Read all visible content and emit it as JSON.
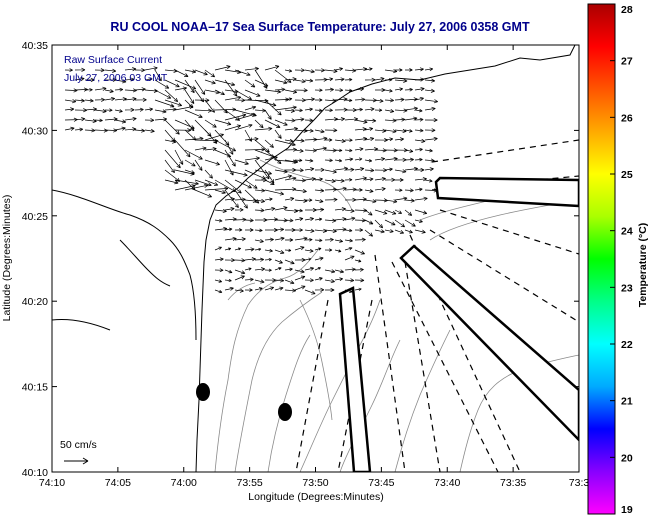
{
  "title": "RU COOL  NOAA–17  Sea Surface Temperature:  July 27, 2006 0358 GMT",
  "annotation": {
    "line1": "Raw Surface Current",
    "line2": "July 27, 2006 03 GMT"
  },
  "scale": {
    "label": "50 cm/s"
  },
  "axes": {
    "xlabel": "Longitude (Degrees:Minutes)",
    "ylabel": "Latitude (Degrees:Minutes)",
    "xticks": [
      "74:10",
      "74:05",
      "74:00",
      "73:55",
      "73:50",
      "73:45",
      "73:40",
      "73:35",
      "73:3"
    ],
    "yticks": [
      "40:35",
      "40:30",
      "40:25",
      "40:20",
      "40:15",
      "40:10"
    ]
  },
  "colorbar": {
    "label": "Temperature (°C)",
    "min": 19,
    "max": 28,
    "ticks": [
      "28",
      "27",
      "26",
      "25",
      "24",
      "23",
      "22",
      "21",
      "20",
      "19"
    ],
    "colors": [
      "#ff00ff",
      "#8800ff",
      "#0000ff",
      "#00aaff",
      "#00ffff",
      "#00ff88",
      "#00ff00",
      "#aaff00",
      "#ffff00",
      "#ffaa00",
      "#ff5500",
      "#ff0000",
      "#aa0000"
    ]
  },
  "colors": {
    "title": "#00008b",
    "coast": "#000000",
    "isobath": "#888888",
    "vectors": "#000000"
  },
  "chart_data": {
    "type": "vector-field-map",
    "x_range": [
      "74:10",
      "73:30"
    ],
    "y_range": [
      "40:10",
      "40:35"
    ],
    "features": [
      "coastline",
      "bathymetry contours",
      "surface current vectors",
      "shipping lanes (dashed)",
      "restricted areas (outlined polygons)",
      "two buoys/markers"
    ]
  }
}
